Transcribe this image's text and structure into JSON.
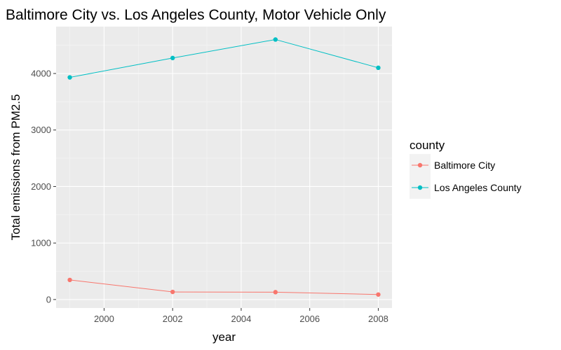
{
  "chart_data": {
    "type": "line",
    "title": "Baltimore City vs. Los Angeles County, Motor Vehicle Only",
    "xlabel": "year",
    "ylabel": "Total emissions from PM2.5",
    "x": [
      1999,
      2002,
      2005,
      2008
    ],
    "xlim": [
      1998.6,
      2008.4
    ],
    "ylim": [
      -150,
      4830
    ],
    "x_ticks": [
      2000,
      2002,
      2004,
      2006,
      2008
    ],
    "y_ticks": [
      0,
      1000,
      2000,
      3000,
      4000
    ],
    "x_tick_labels": [
      "2000",
      "2002",
      "2004",
      "2006",
      "2008"
    ],
    "y_tick_labels": [
      "0",
      "1000",
      "2000",
      "3000",
      "4000"
    ],
    "grid": true,
    "legend_title": "county",
    "legend_position": "right",
    "series": [
      {
        "name": "Baltimore City",
        "color": "#F8766D",
        "values": [
          346.82,
          134.31,
          130.43,
          88.28
        ]
      },
      {
        "name": "Los Angeles County",
        "color": "#00BFC4",
        "values": [
          3931.12,
          4274.03,
          4601.41,
          4101.32
        ]
      }
    ]
  }
}
